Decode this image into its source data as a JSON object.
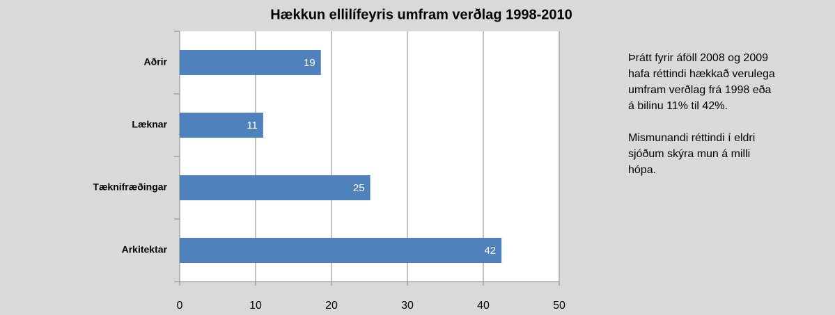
{
  "chart_data": {
    "type": "bar",
    "orientation": "horizontal",
    "title": "Hækkun ellilífeyris umfram verðlag 1998-2010",
    "categories": [
      "Aðrir",
      "Læknar",
      "Tæknifræðingar",
      "Arkitektar"
    ],
    "values": [
      18.6,
      11,
      25.1,
      42.4
    ],
    "value_labels": [
      "19",
      "11",
      "25",
      "42"
    ],
    "color": "#4f81bd",
    "xlim": [
      0,
      50
    ],
    "xticks": [
      0,
      10,
      20,
      30,
      40,
      50
    ],
    "grid": true,
    "annotations": [
      [
        "Þrátt fyrir áföll 2008 og 2009",
        "hafa réttindi hækkað verulega",
        "umfram verðlag frá 1998 eða",
        "á bilinu 11% til 42%."
      ],
      [
        "Mismunandi réttindi í eldri",
        "sjóðum skýra mun á milli",
        "hópa."
      ]
    ]
  }
}
